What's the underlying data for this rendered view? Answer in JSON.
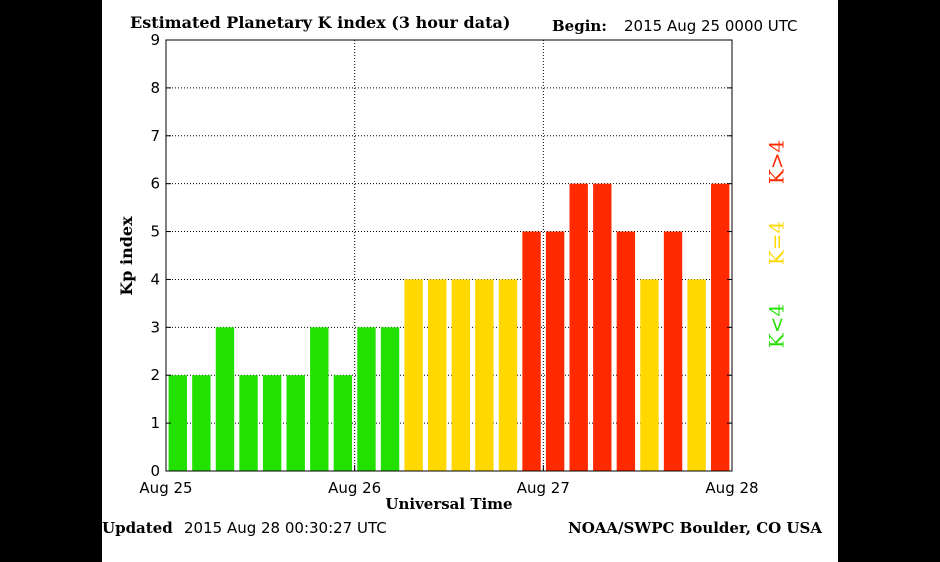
{
  "chart_data": {
    "type": "bar",
    "title": "Estimated Planetary K index (3 hour data)",
    "begin_label": "Begin:",
    "begin_value": "2015 Aug 25 0000 UTC",
    "xlabel": "Universal Time",
    "ylabel": "Kp index",
    "ylim": [
      0,
      9
    ],
    "yticks": [
      "0",
      "1",
      "2",
      "3",
      "4",
      "5",
      "6",
      "7",
      "8",
      "9"
    ],
    "xticks": [
      "Aug 25",
      "Aug 26",
      "Aug 27",
      "Aug 28"
    ],
    "values": [
      2,
      2,
      3,
      2,
      2,
      2,
      3,
      2,
      3,
      3,
      4,
      4,
      4,
      4,
      4,
      5,
      5,
      6,
      6,
      5,
      4,
      5,
      4,
      6
    ],
    "grid": true,
    "legend": [
      {
        "label": "K>4",
        "color": "#ff2a00"
      },
      {
        "label": "K=4",
        "color": "#ffd800"
      },
      {
        "label": "K<4",
        "color": "#22e000"
      }
    ]
  },
  "footer": {
    "updated_label": "Updated",
    "updated_value": "2015 Aug 28 00:30:27 UTC",
    "source": "NOAA/SWPC Boulder, CO USA"
  },
  "colors": {
    "low": "#22e000",
    "mid": "#ffd800",
    "high": "#ff2a00"
  }
}
